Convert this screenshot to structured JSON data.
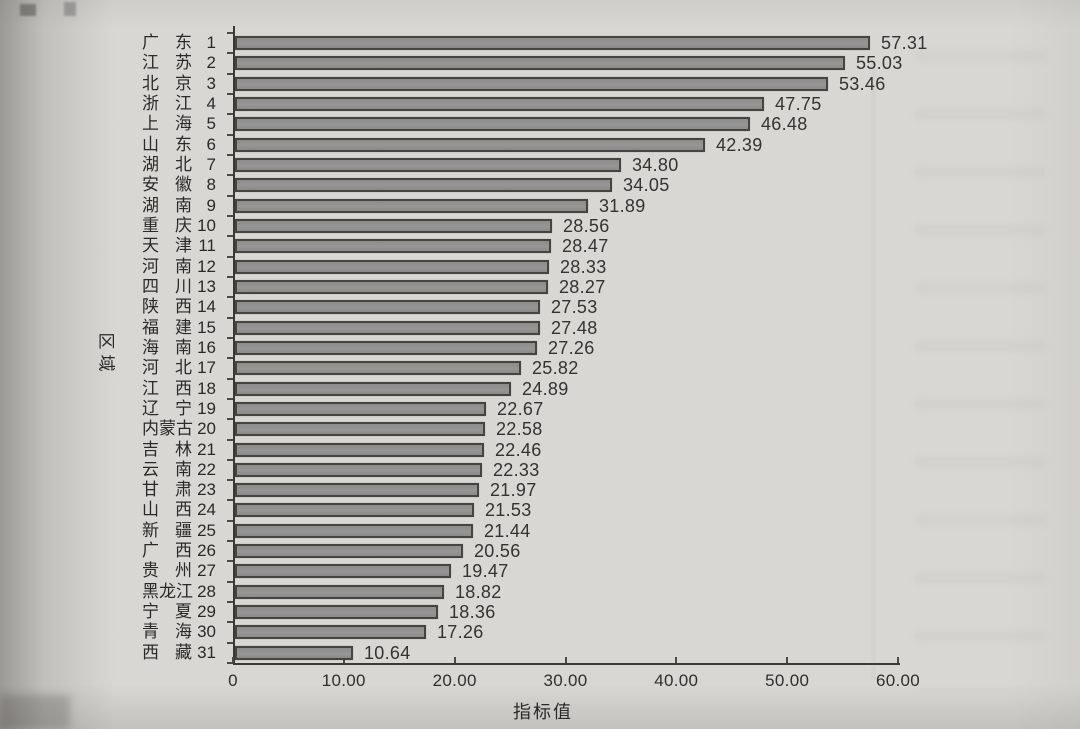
{
  "page": {
    "paper_color": "#d8d7d3",
    "text_color": "#2d2d2b",
    "bar_fill": "#90908e",
    "bar_border": "#45443f"
  },
  "chart_data": {
    "type": "bar",
    "orientation": "horizontal",
    "title": "",
    "xlabel": "指标值",
    "ylabel": "区域",
    "xlim": [
      0,
      60
    ],
    "grid": false,
    "legend": false,
    "x_ticks": [
      {
        "value": 0,
        "label": "0"
      },
      {
        "value": 10,
        "label": "10.00"
      },
      {
        "value": 20,
        "label": "20.00"
      },
      {
        "value": 30,
        "label": "30.00"
      },
      {
        "value": 40,
        "label": "40.00"
      },
      {
        "value": 50,
        "label": "50.00"
      },
      {
        "value": 60,
        "label": "60.00"
      }
    ],
    "rows": [
      {
        "rank": 1,
        "province": "广东",
        "value": 57.31,
        "value_label": "57.31"
      },
      {
        "rank": 2,
        "province": "江苏",
        "value": 55.03,
        "value_label": "55.03"
      },
      {
        "rank": 3,
        "province": "北京",
        "value": 53.46,
        "value_label": "53.46"
      },
      {
        "rank": 4,
        "province": "浙江",
        "value": 47.75,
        "value_label": "47.75"
      },
      {
        "rank": 5,
        "province": "上海",
        "value": 46.48,
        "value_label": "46.48"
      },
      {
        "rank": 6,
        "province": "山东",
        "value": 42.39,
        "value_label": "42.39"
      },
      {
        "rank": 7,
        "province": "湖北",
        "value": 34.8,
        "value_label": "34.80"
      },
      {
        "rank": 8,
        "province": "安徽",
        "value": 34.05,
        "value_label": "34.05"
      },
      {
        "rank": 9,
        "province": "湖南",
        "value": 31.89,
        "value_label": "31.89"
      },
      {
        "rank": 10,
        "province": "重庆",
        "value": 28.56,
        "value_label": "28.56"
      },
      {
        "rank": 11,
        "province": "天津",
        "value": 28.47,
        "value_label": "28.47"
      },
      {
        "rank": 12,
        "province": "河南",
        "value": 28.33,
        "value_label": "28.33"
      },
      {
        "rank": 13,
        "province": "四川",
        "value": 28.27,
        "value_label": "28.27"
      },
      {
        "rank": 14,
        "province": "陕西",
        "value": 27.53,
        "value_label": "27.53"
      },
      {
        "rank": 15,
        "province": "福建",
        "value": 27.48,
        "value_label": "27.48"
      },
      {
        "rank": 16,
        "province": "海南",
        "value": 27.26,
        "value_label": "27.26"
      },
      {
        "rank": 17,
        "province": "河北",
        "value": 25.82,
        "value_label": "25.82"
      },
      {
        "rank": 18,
        "province": "江西",
        "value": 24.89,
        "value_label": "24.89"
      },
      {
        "rank": 19,
        "province": "辽宁",
        "value": 22.67,
        "value_label": "22.67"
      },
      {
        "rank": 20,
        "province": "内蒙古",
        "value": 22.58,
        "value_label": "22.58"
      },
      {
        "rank": 21,
        "province": "吉林",
        "value": 22.46,
        "value_label": "22.46"
      },
      {
        "rank": 22,
        "province": "云南",
        "value": 22.33,
        "value_label": "22.33"
      },
      {
        "rank": 23,
        "province": "甘肃",
        "value": 21.97,
        "value_label": "21.97"
      },
      {
        "rank": 24,
        "province": "山西",
        "value": 21.53,
        "value_label": "21.53"
      },
      {
        "rank": 25,
        "province": "新疆",
        "value": 21.44,
        "value_label": "21.44"
      },
      {
        "rank": 26,
        "province": "广西",
        "value": 20.56,
        "value_label": "20.56"
      },
      {
        "rank": 27,
        "province": "贵州",
        "value": 19.47,
        "value_label": "19.47"
      },
      {
        "rank": 28,
        "province": "黑龙江",
        "value": 18.82,
        "value_label": "18.82"
      },
      {
        "rank": 29,
        "province": "宁夏",
        "value": 18.36,
        "value_label": "18.36"
      },
      {
        "rank": 30,
        "province": "青海",
        "value": 17.26,
        "value_label": "17.26"
      },
      {
        "rank": 31,
        "province": "西藏",
        "value": 10.64,
        "value_label": "10.64"
      }
    ]
  }
}
